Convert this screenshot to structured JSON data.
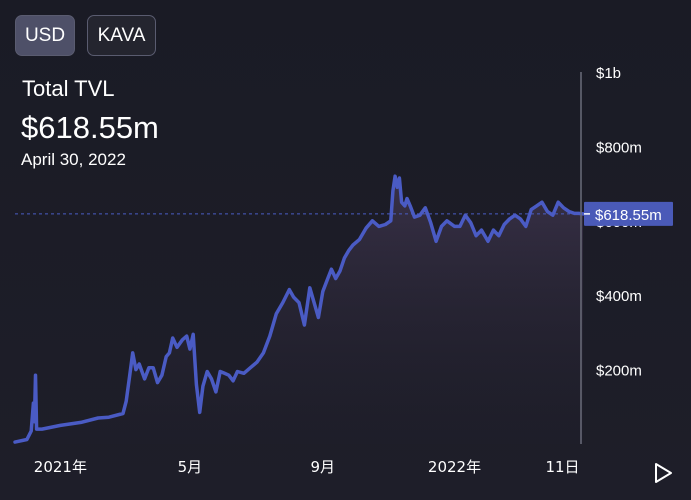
{
  "toggle": {
    "usd_label": "USD",
    "kava_label": "KAVA",
    "selected": "USD"
  },
  "header": {
    "title": "Total TVL",
    "value": "$618.55m",
    "date": "April 30, 2022"
  },
  "controls": {
    "play_icon": "play-icon"
  },
  "colors": {
    "line": "#4a5bc4",
    "badge_bg": "#4a5ab8",
    "axis": "#6a6c7a",
    "text": "#ffffff"
  },
  "chart_data": {
    "type": "area",
    "title": "",
    "xlabel": "",
    "ylabel": "",
    "x_ticks": [
      "2021年",
      "5月",
      "9月",
      "2022年",
      "11日"
    ],
    "x_tick_dates": [
      "2021-01-01",
      "2021-05-01",
      "2021-09-01",
      "2022-01-01",
      "2022-04-11"
    ],
    "y_ticks": [
      "$200m",
      "$400m",
      "$600m",
      "$800m",
      "$1b"
    ],
    "y_tick_values": [
      200,
      400,
      600,
      800,
      1000
    ],
    "ylim": [
      0,
      1000
    ],
    "y_unit": "million USD",
    "current_value": 618.55,
    "current_label": "$618.55m",
    "grid": false,
    "series": [
      {
        "x": [
          "2020-11-20",
          "2020-12-01",
          "2020-12-05",
          "2020-12-07",
          "2020-12-08",
          "2020-12-09",
          "2020-12-10",
          "2020-12-15",
          "2021-01-01",
          "2021-01-20",
          "2021-02-05",
          "2021-02-15",
          "2021-02-28",
          "2021-03-03",
          "2021-03-06",
          "2021-03-09",
          "2021-03-12",
          "2021-03-15",
          "2021-03-20",
          "2021-03-24",
          "2021-03-28",
          "2021-04-01",
          "2021-04-05",
          "2021-04-09",
          "2021-04-12",
          "2021-04-15",
          "2021-04-19",
          "2021-04-24",
          "2021-04-28",
          "2021-05-01",
          "2021-05-04",
          "2021-05-07",
          "2021-05-10",
          "2021-05-13",
          "2021-05-17",
          "2021-05-21",
          "2021-05-25",
          "2021-05-29",
          "2021-06-02",
          "2021-06-06",
          "2021-06-10",
          "2021-06-14",
          "2021-06-20",
          "2021-06-26",
          "2021-07-02",
          "2021-07-08",
          "2021-07-14",
          "2021-07-20",
          "2021-07-26",
          "2021-08-01",
          "2021-08-05",
          "2021-08-10",
          "2021-08-15",
          "2021-08-20",
          "2021-08-24",
          "2021-08-28",
          "2021-09-01",
          "2021-09-05",
          "2021-09-09",
          "2021-09-13",
          "2021-09-17",
          "2021-09-21",
          "2021-09-25",
          "2021-09-29",
          "2021-10-05",
          "2021-10-11",
          "2021-10-17",
          "2021-10-23",
          "2021-10-29",
          "2021-11-03",
          "2021-11-05",
          "2021-11-07",
          "2021-11-09",
          "2021-11-11",
          "2021-11-13",
          "2021-11-16",
          "2021-11-18",
          "2021-11-21",
          "2021-11-25",
          "2021-11-30",
          "2021-12-05",
          "2021-12-10",
          "2021-12-15",
          "2021-12-20",
          "2021-12-25",
          "2022-01-01",
          "2022-01-06",
          "2022-01-11",
          "2022-01-16",
          "2022-01-21",
          "2022-01-26",
          "2022-02-01",
          "2022-02-06",
          "2022-02-11",
          "2022-02-16",
          "2022-02-21",
          "2022-02-26",
          "2022-03-03",
          "2022-03-08",
          "2022-03-13",
          "2022-03-18",
          "2022-03-23",
          "2022-03-28",
          "2022-04-02",
          "2022-04-07",
          "2022-04-12",
          "2022-04-17",
          "2022-04-22",
          "2022-04-26",
          "2022-04-30"
        ],
        "y": [
          5,
          12,
          35,
          110,
          60,
          185,
          40,
          40,
          50,
          58,
          70,
          72,
          82,
          115,
          180,
          245,
          200,
          215,
          175,
          205,
          205,
          165,
          185,
          235,
          245,
          285,
          260,
          280,
          290,
          255,
          295,
          160,
          85,
          155,
          195,
          175,
          140,
          195,
          190,
          185,
          170,
          195,
          190,
          205,
          220,
          245,
          290,
          350,
          380,
          415,
          395,
          380,
          320,
          420,
          380,
          340,
          410,
          440,
          470,
          445,
          465,
          500,
          520,
          535,
          550,
          580,
          600,
          585,
          590,
          600,
          680,
          720,
          690,
          715,
          650,
          640,
          660,
          640,
          610,
          615,
          635,
          595,
          545,
          585,
          600,
          585,
          585,
          615,
          595,
          560,
          575,
          545,
          575,
          560,
          590,
          605,
          615,
          605,
          585,
          630,
          640,
          650,
          625,
          615,
          650,
          635,
          625,
          620,
          620,
          618.55
        ]
      }
    ]
  }
}
